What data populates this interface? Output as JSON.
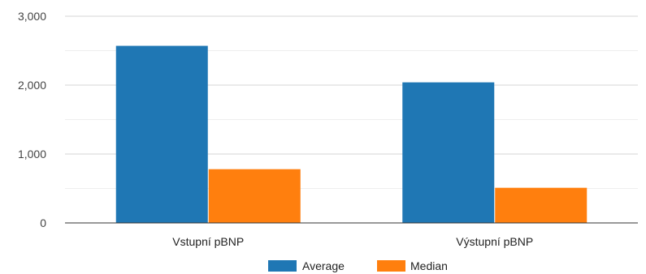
{
  "chart_data": {
    "type": "bar",
    "categories": [
      "Vstupní pBNP",
      "Výstupní pBNP"
    ],
    "series": [
      {
        "name": "Average",
        "color": "#1f77b4",
        "values": [
          2570,
          2040
        ]
      },
      {
        "name": "Median",
        "color": "#ff7f0e",
        "values": [
          780,
          510
        ]
      }
    ],
    "ylim": [
      0,
      3000
    ],
    "yticks": [
      0,
      1000,
      2000,
      3000
    ],
    "ytick_labels": [
      "0",
      "1,000",
      "2,000",
      "3,000"
    ],
    "grid": true,
    "legend_position": "bottom",
    "title": "",
    "xlabel": "",
    "ylabel": ""
  }
}
